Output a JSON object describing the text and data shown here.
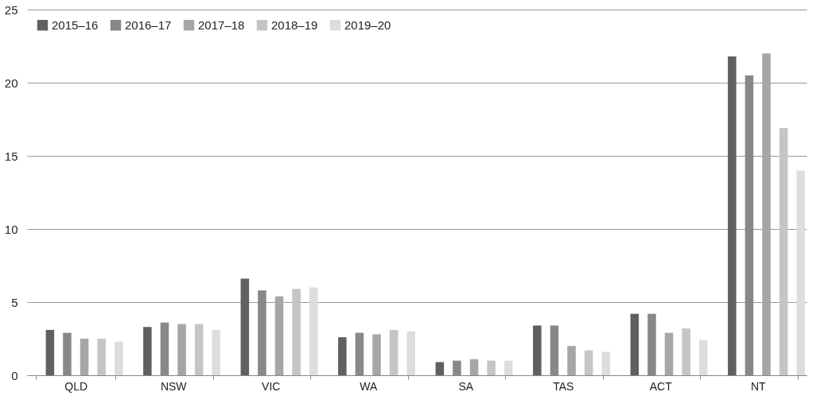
{
  "chart_data": {
    "type": "bar",
    "categories": [
      "QLD",
      "NSW",
      "VIC",
      "WA",
      "SA",
      "TAS",
      "ACT",
      "NT"
    ],
    "series": [
      {
        "name": "2015–16",
        "color": "#5f6062",
        "values": [
          3.1,
          3.3,
          6.6,
          2.6,
          0.9,
          3.4,
          4.2,
          21.8
        ]
      },
      {
        "name": "2016–17",
        "color": "#87888a",
        "values": [
          2.9,
          3.6,
          5.8,
          2.9,
          1.0,
          3.4,
          4.2,
          20.5
        ]
      },
      {
        "name": "2017–18",
        "color": "#a5a6a8",
        "values": [
          2.5,
          3.5,
          5.4,
          2.8,
          1.1,
          2.0,
          2.9,
          22.0
        ]
      },
      {
        "name": "2018–19",
        "color": "#c4c5c7",
        "values": [
          2.5,
          3.5,
          5.9,
          3.1,
          1.0,
          1.7,
          3.2,
          16.9
        ]
      },
      {
        "name": "2019–20",
        "color": "#dcdddf",
        "values": [
          2.3,
          3.1,
          6.0,
          3.0,
          1.0,
          1.6,
          2.4,
          14.0
        ]
      }
    ],
    "ylim": [
      0,
      25
    ],
    "yticks": [
      0,
      5,
      10,
      15,
      20,
      25
    ],
    "grid": "y",
    "legend": "top left"
  }
}
